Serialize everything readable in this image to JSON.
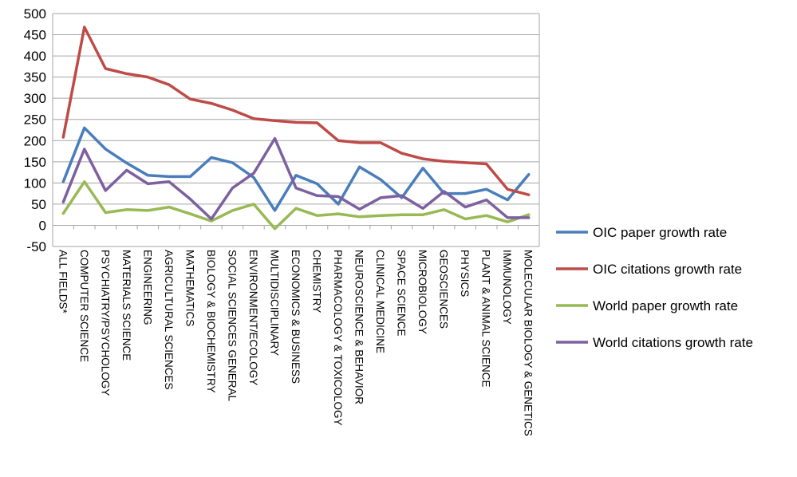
{
  "chart_data": {
    "type": "line",
    "ylim": [
      -50,
      500
    ],
    "yticks": [
      500,
      450,
      400,
      350,
      300,
      250,
      200,
      150,
      100,
      50,
      0,
      -50
    ],
    "grid": true,
    "legend_position": "right",
    "categories": [
      "ALL FIELDS*",
      "COMPUTER SCIENCE",
      "PSYCHIATRY/PSYCHOLOGY",
      "MATERIALS SCIENCE",
      "ENGINEERING",
      "AGRICULTURAL SCIENCES",
      "MATHEMATICS",
      "BIOLOGY & BIOCHEMISTRY",
      "SOCIAL SCIENCES GENERAL",
      "ENVIRONMENT/ECOLOGY",
      "MULTIDISCIPLINARY",
      "ECONOMICS & BUSINESS",
      "CHEMISTRY",
      "PHARMACOLOGY & TOXICOLOGY",
      "NEUROSCIENCE & BEHAVIOR",
      "CLINICAL MEDICINE",
      "SPACE SCIENCE",
      "MICROBIOLOGY",
      "GEOSCIENCES",
      "PHYSICS",
      "PLANT & ANIMAL SCIENCE",
      "IMMUNOLOGY",
      "MOLECULAR BIOLOGY & GENETICS"
    ],
    "series": [
      {
        "name": "OIC paper growth rate",
        "color": "#4a7ebb",
        "values": [
          103,
          230,
          180,
          147,
          118,
          115,
          115,
          160,
          148,
          113,
          35,
          118,
          98,
          50,
          138,
          108,
          65,
          135,
          75,
          75,
          85,
          60,
          120
        ]
      },
      {
        "name": "OIC citations growth rate",
        "color": "#be4b48",
        "values": [
          208,
          468,
          370,
          358,
          350,
          332,
          298,
          288,
          272,
          252,
          247,
          243,
          242,
          200,
          195,
          195,
          170,
          157,
          151,
          148,
          145,
          85,
          72
        ]
      },
      {
        "name": "World paper growth rate",
        "color": "#98b954",
        "values": [
          28,
          103,
          30,
          37,
          35,
          43,
          27,
          10,
          35,
          50,
          -8,
          40,
          23,
          27,
          20,
          23,
          25,
          25,
          37,
          15,
          23,
          8,
          25
        ]
      },
      {
        "name": "World citations growth rate",
        "color": "#7d60a0",
        "values": [
          55,
          180,
          82,
          130,
          98,
          103,
          62,
          15,
          88,
          123,
          205,
          88,
          70,
          68,
          38,
          65,
          70,
          40,
          80,
          43,
          60,
          18,
          18
        ]
      }
    ]
  }
}
